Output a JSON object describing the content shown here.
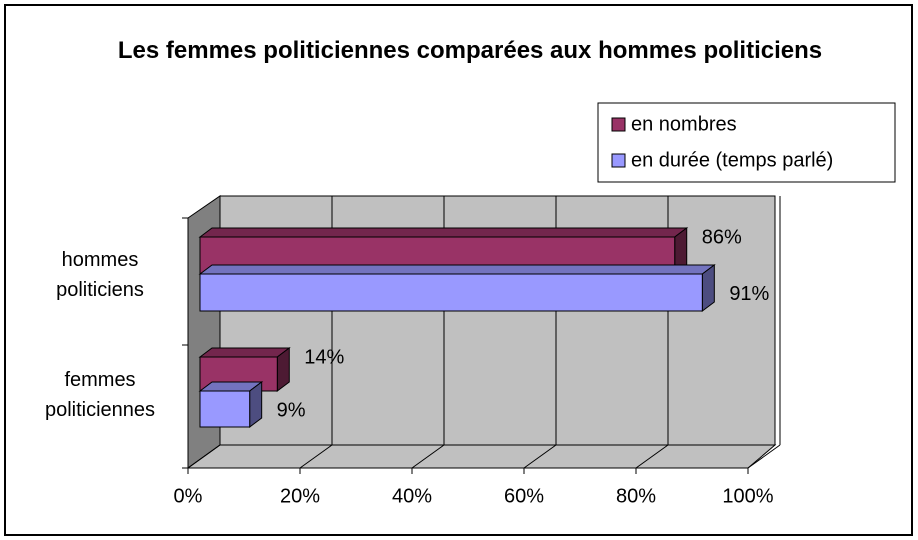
{
  "chart_data": {
    "type": "bar",
    "orientation": "horizontal",
    "three_d": true,
    "title": "Les femmes politiciennes comparées aux hommes politiciens",
    "categories": [
      "hommes politiciens",
      "femmes politiciennes"
    ],
    "series": [
      {
        "name": "en nombres",
        "color": "#993366",
        "values": [
          86,
          14
        ],
        "value_labels": [
          "86%",
          "14%"
        ]
      },
      {
        "name": "en durée (temps parlé)",
        "color": "#9999ff",
        "values": [
          91,
          9
        ],
        "value_labels": [
          "91%",
          "9%"
        ]
      }
    ],
    "xlim": [
      0,
      100
    ],
    "xticks": [
      {
        "value": 0,
        "label": "0%"
      },
      {
        "value": 20,
        "label": "20%"
      },
      {
        "value": 40,
        "label": "40%"
      },
      {
        "value": 60,
        "label": "60%"
      },
      {
        "value": 80,
        "label": "80%"
      },
      {
        "value": 100,
        "label": "100%"
      }
    ],
    "grid": true,
    "legend": "top-right"
  }
}
